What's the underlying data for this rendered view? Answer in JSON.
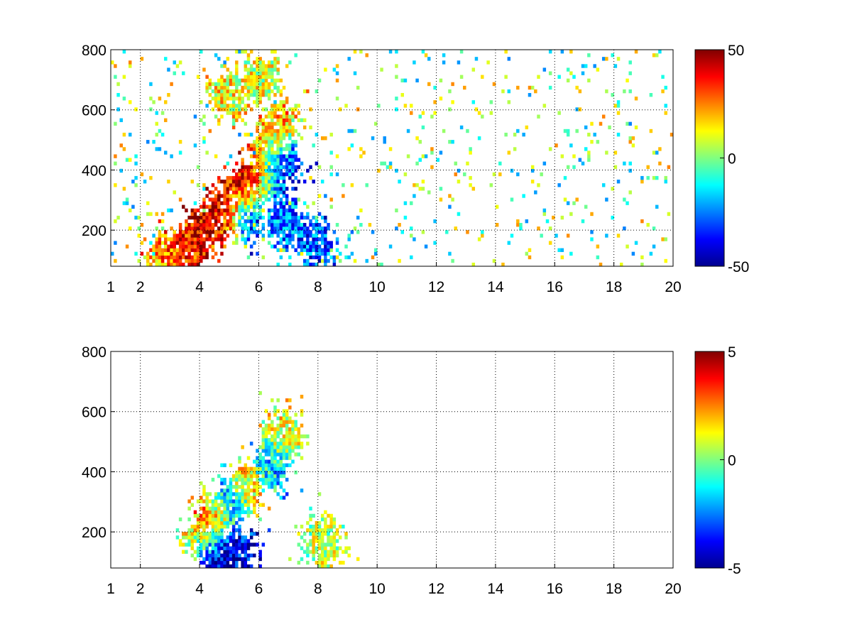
{
  "chart_data": [
    {
      "type": "heatmap",
      "xlim": [
        1,
        20
      ],
      "ylim": [
        80,
        800
      ],
      "x_ticks": [
        1,
        2,
        4,
        6,
        8,
        10,
        12,
        14,
        16,
        18,
        20
      ],
      "x_tick_labels": [
        "1",
        "2",
        "4",
        "6",
        "8",
        "10",
        "12",
        "14",
        "16",
        "18",
        "20"
      ],
      "y_ticks": [
        200,
        400,
        600,
        800
      ],
      "y_tick_labels": [
        "200",
        "400",
        "600",
        "800"
      ],
      "grid": true,
      "colorbar": {
        "colormap": "jet",
        "clim": [
          -50,
          50
        ],
        "ticks": [
          -50,
          0,
          50
        ],
        "tick_labels": [
          "-50",
          "0",
          "50"
        ]
      },
      "features": [
        {
          "x": 2.9,
          "y": 110,
          "value": 22
        },
        {
          "x": 3.3,
          "y": 120,
          "value": 30
        },
        {
          "x": 3.8,
          "y": 150,
          "value": 42
        },
        {
          "x": 4.2,
          "y": 200,
          "value": 38
        },
        {
          "x": 4.8,
          "y": 260,
          "value": 40
        },
        {
          "x": 5.3,
          "y": 320,
          "value": 42
        },
        {
          "x": 5.8,
          "y": 360,
          "value": 45
        },
        {
          "x": 6.3,
          "y": 430,
          "value": 30
        },
        {
          "x": 6.6,
          "y": 550,
          "value": 20
        },
        {
          "x": 6.5,
          "y": 380,
          "value": -40
        },
        {
          "x": 6.8,
          "y": 430,
          "value": -35
        },
        {
          "x": 5.6,
          "y": 260,
          "value": -38
        },
        {
          "x": 6.9,
          "y": 230,
          "value": -25
        },
        {
          "x": 7.9,
          "y": 160,
          "value": -30
        },
        {
          "x": 5.0,
          "y": 650,
          "value": 12
        },
        {
          "x": 6.0,
          "y": 700,
          "value": 8
        }
      ]
    },
    {
      "type": "heatmap",
      "xlim": [
        1,
        20
      ],
      "ylim": [
        80,
        800
      ],
      "x_ticks": [
        1,
        2,
        4,
        6,
        8,
        10,
        12,
        14,
        16,
        18,
        20
      ],
      "x_tick_labels": [
        "1",
        "2",
        "4",
        "6",
        "8",
        "10",
        "12",
        "14",
        "16",
        "18",
        "20"
      ],
      "y_ticks": [
        200,
        400,
        600,
        800
      ],
      "y_tick_labels": [
        "200",
        "400",
        "600",
        "800"
      ],
      "grid": true,
      "colorbar": {
        "colormap": "jet",
        "clim": [
          -5,
          5
        ],
        "ticks": [
          -5,
          0,
          5
        ],
        "tick_labels": [
          "-5",
          "0",
          "5"
        ]
      },
      "features": [
        {
          "x": 4.6,
          "y": 130,
          "value": -5
        },
        {
          "x": 5.2,
          "y": 140,
          "value": -4
        },
        {
          "x": 4.5,
          "y": 250,
          "value": 3
        },
        {
          "x": 5.0,
          "y": 300,
          "value": -3
        },
        {
          "x": 5.6,
          "y": 350,
          "value": 2
        },
        {
          "x": 6.4,
          "y": 420,
          "value": -2
        },
        {
          "x": 6.8,
          "y": 520,
          "value": 1
        },
        {
          "x": 4.2,
          "y": 180,
          "value": 1
        },
        {
          "x": 8.2,
          "y": 160,
          "value": 0.5
        }
      ]
    }
  ]
}
